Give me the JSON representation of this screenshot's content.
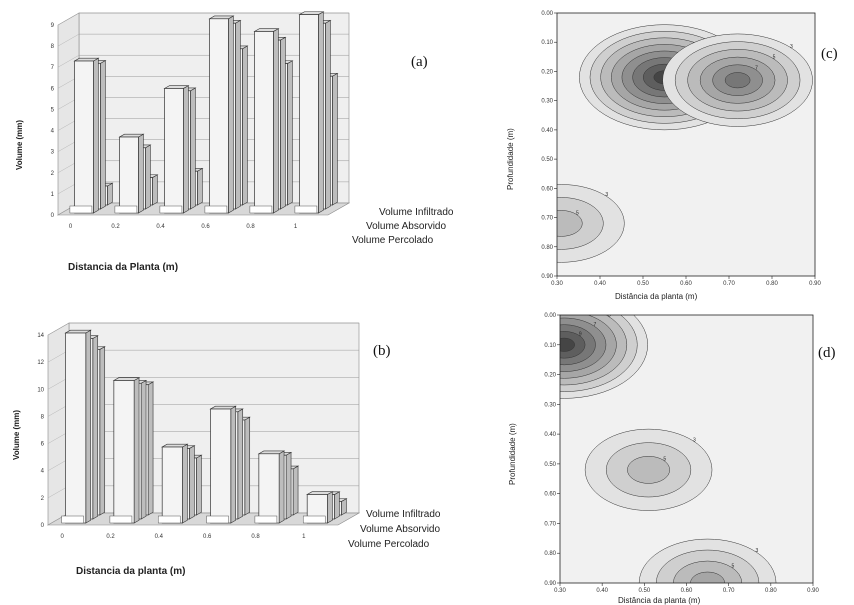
{
  "labels": {
    "a": "(a)",
    "b": "(b)",
    "c": "(c)",
    "d": "(d)"
  },
  "chart_data": [
    {
      "id": "a",
      "type": "bar",
      "xlabel": "Distancia da Planta (m)",
      "ylabel": "Volume (mm)",
      "ylim": [
        0,
        9
      ],
      "yticks": [
        "0",
        "1",
        "2",
        "3",
        "4",
        "5",
        "6",
        "7",
        "8",
        "9"
      ],
      "categories": [
        "0",
        "0.2",
        "0.4",
        "0.6",
        "0.8",
        "1"
      ],
      "series": [
        {
          "name": "Volume Infiltrado",
          "values": [
            7.2,
            3.6,
            5.9,
            9.2,
            8.6,
            9.4
          ]
        },
        {
          "name": "Volume Absorvido",
          "values": [
            6.9,
            2.9,
            5.6,
            8.8,
            8.0,
            8.8
          ]
        },
        {
          "name": "Volume Percolado",
          "values": [
            0.9,
            1.3,
            1.6,
            7.4,
            6.7,
            6.1
          ]
        }
      ]
    },
    {
      "id": "b",
      "type": "bar",
      "xlabel": "Distancia da planta (m)",
      "ylabel": "Volume (mm)",
      "ylim": [
        0,
        14
      ],
      "yticks": [
        "0",
        "2",
        "4",
        "6",
        "8",
        "10",
        "12",
        "14"
      ],
      "categories": [
        "0",
        "0.2",
        "0.4",
        "0.6",
        "0.8",
        "1"
      ],
      "series": [
        {
          "name": "Volume Infiltrado",
          "values": [
            14.0,
            10.5,
            5.6,
            8.4,
            5.1,
            2.1
          ]
        },
        {
          "name": "Volume Absorvido",
          "values": [
            13.3,
            10.0,
            5.2,
            7.9,
            4.7,
            1.8
          ]
        },
        {
          "name": "Volume Percolado",
          "values": [
            12.2,
            9.6,
            4.2,
            7.0,
            3.4,
            1.0
          ]
        }
      ]
    },
    {
      "id": "c",
      "type": "heatmap",
      "xlabel": "Distância da planta (m)",
      "ylabel": "Profundidade (m)",
      "xlim": [
        0.3,
        0.9
      ],
      "ylim": [
        0.0,
        0.9
      ],
      "xticks": [
        "0.30",
        "0.40",
        "0.50",
        "0.60",
        "0.70",
        "0.80",
        "0.90"
      ],
      "yticks": [
        "0.00",
        "0.10",
        "0.20",
        "0.30",
        "0.40",
        "0.50",
        "0.60",
        "0.70",
        "0.80",
        "0.90"
      ],
      "peaks": [
        {
          "x": 0.55,
          "y": 0.22,
          "level": 1.0
        },
        {
          "x": 0.72,
          "y": 0.23,
          "level": 0.7
        },
        {
          "x": 0.31,
          "y": 0.72,
          "level": 0.35
        }
      ]
    },
    {
      "id": "d",
      "type": "heatmap",
      "xlabel": "Distância da planta (m)",
      "ylabel": "Profundidade (m)",
      "xlim": [
        0.3,
        0.9
      ],
      "ylim": [
        0.0,
        0.9
      ],
      "xticks": [
        "0.30",
        "0.40",
        "0.50",
        "0.60",
        "0.70",
        "0.80",
        "0.90"
      ],
      "yticks": [
        "0.00",
        "0.10",
        "0.20",
        "0.30",
        "0.40",
        "0.50",
        "0.60",
        "0.70",
        "0.80",
        "0.90"
      ],
      "peaks": [
        {
          "x": 0.31,
          "y": 0.1,
          "level": 1.0
        },
        {
          "x": 0.51,
          "y": 0.52,
          "level": 0.4
        },
        {
          "x": 0.65,
          "y": 0.9,
          "level": 0.55
        }
      ]
    }
  ],
  "colors": {
    "bar_face": "#f4f4f4",
    "bar_side": "#bdbdbd",
    "wall": "#efefef",
    "floor": "#d8d8d8",
    "contour_dark": "#3c3c3c",
    "contour_light": "#f4f4f4"
  }
}
